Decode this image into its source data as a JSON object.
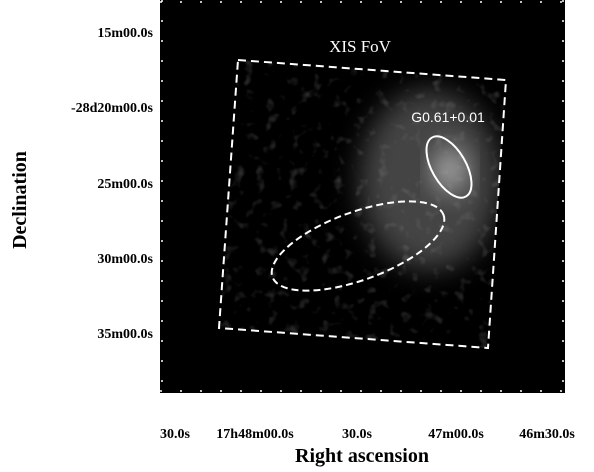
{
  "figure": {
    "annotations": {
      "fov": "XIS FoV",
      "source": "G0.61+0.01"
    },
    "y_axis": {
      "title": "Declination",
      "ticks": [
        "15m00.0s",
        "-28d20m00.0s",
        "25m00.0s",
        "30m00.0s",
        "35m00.0s"
      ]
    },
    "x_axis": {
      "title": "Right ascension",
      "ticks": [
        "30.0s",
        "17h48m00.0s",
        "30.0s",
        "47m00.0s",
        "46m30.0s"
      ]
    }
  }
}
